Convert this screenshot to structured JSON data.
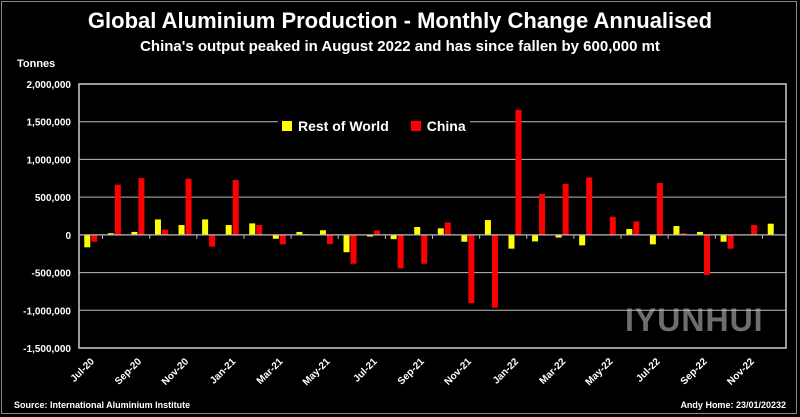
{
  "chart_data": {
    "type": "bar",
    "title": "Global Aluminium Production - Monthly Change Annualised",
    "subtitle": "China's output peaked in August 2022 and has since fallen by 600,000 mt",
    "ylabel": "Tonnes",
    "xlabel": "",
    "ylim": [
      -1500000,
      2000000
    ],
    "yticks": [
      2000000,
      1500000,
      1000000,
      500000,
      0,
      -500000,
      -1000000,
      -1500000
    ],
    "ytick_labels": [
      "2,000,000",
      "1,500,000",
      "1,000,000",
      "500,000",
      "0",
      "-500,000",
      "-1,000,000",
      "-1,500,000"
    ],
    "grid": true,
    "legend_position": "top-center",
    "categories": [
      "Jul-20",
      "Aug-20",
      "Sep-20",
      "Oct-20",
      "Nov-20",
      "Dec-20",
      "Jan-21",
      "Feb-21",
      "Mar-21",
      "Apr-21",
      "May-21",
      "Jun-21",
      "Jul-21",
      "Aug-21",
      "Sep-21",
      "Oct-21",
      "Nov-21",
      "Dec-21",
      "Jan-22",
      "Feb-22",
      "Mar-22",
      "Apr-22",
      "May-22",
      "Jun-22",
      "Jul-22",
      "Aug-22",
      "Sep-22",
      "Oct-22",
      "Nov-22",
      "Dec-22"
    ],
    "xtick_labels": [
      "Jul-20",
      "Sep-20",
      "Nov-20",
      "Jan-21",
      "Mar-21",
      "May-21",
      "Jul-21",
      "Sep-21",
      "Nov-21",
      "Jan-22",
      "Mar-22",
      "May-22",
      "Jul-22",
      "Sep-22",
      "Nov-22"
    ],
    "series": [
      {
        "name": "Rest of World",
        "color": "#ffff00",
        "values": [
          -165000,
          22000,
          39000,
          204000,
          130000,
          204000,
          130000,
          152000,
          -52000,
          39000,
          61000,
          -230000,
          -22000,
          -57000,
          104000,
          87000,
          -91000,
          196000,
          -183000,
          -87000,
          -35000,
          -139000,
          0,
          78000,
          -126000,
          117000,
          39000,
          -91000,
          0,
          148000
        ]
      },
      {
        "name": "China",
        "color": "#ff0000",
        "values": [
          -90000,
          665000,
          752000,
          70000,
          744000,
          -157000,
          726000,
          130000,
          -126000,
          13000,
          -122000,
          -383000,
          57000,
          -444000,
          -383000,
          165000,
          -905000,
          -966000,
          1657000,
          544000,
          674000,
          761000,
          239000,
          178000,
          687000,
          22000,
          -530000,
          -183000,
          130000,
          0
        ]
      }
    ]
  },
  "footer": {
    "source": "Source: International Aluminium Institute",
    "author": "Andy Home: 23/01/20232",
    "watermark": "IYUNHUI"
  }
}
